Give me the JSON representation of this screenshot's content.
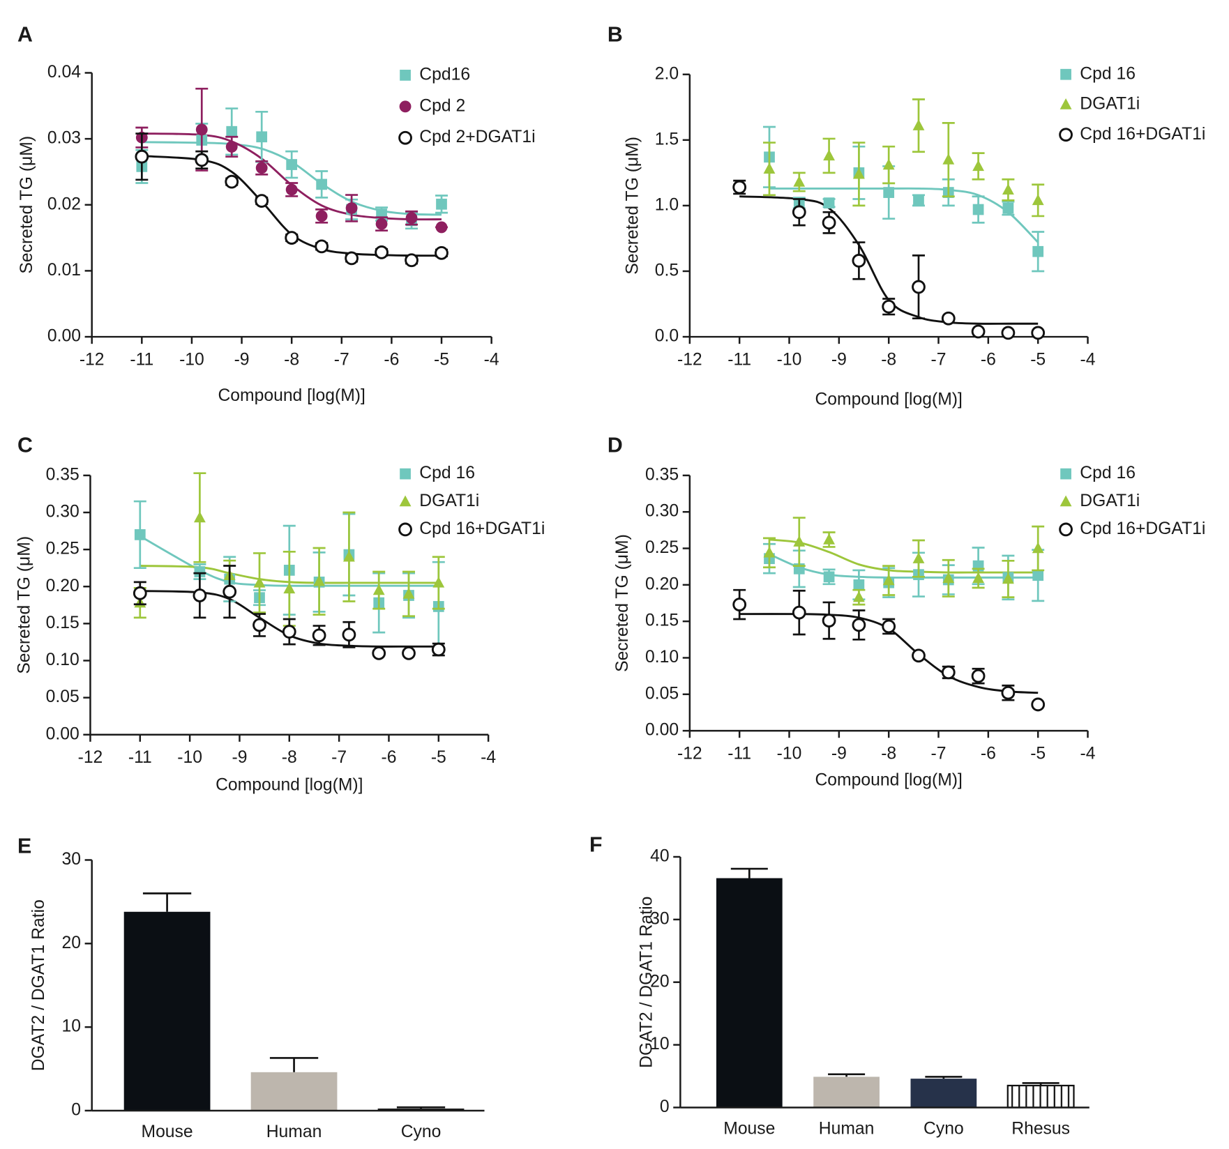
{
  "chart_data": [
    {
      "type": "scatter",
      "label": "A",
      "xlabel": "Compound [log(M)]",
      "ylabel": "Secreted TG (μM)",
      "xlim": [
        -12,
        -4
      ],
      "xticks": [
        -12,
        -11,
        -10,
        -9,
        -8,
        -7,
        -6,
        -5,
        -4
      ],
      "ylim": [
        0,
        0.04
      ],
      "yticks": [
        {
          "value": 0,
          "label": "0.00"
        },
        0.01,
        0.02,
        0.03,
        0.04
      ],
      "series": [
        {
          "name": "Cpd16",
          "color": "#6fc7bd",
          "marker": "square",
          "x": [
            -11,
            -9.8,
            -9.2,
            -8.6,
            -8,
            -7.4,
            -6.8,
            -6.2,
            -5.6,
            -5
          ],
          "values": [
            0.0258,
            0.0298,
            0.0311,
            0.0303,
            0.0261,
            0.0231,
            0.0193,
            0.0186,
            0.0176,
            0.0201
          ],
          "errors": [
            0.0025,
            0.0025,
            0.0035,
            0.0038,
            0.002,
            0.002,
            0.0015,
            0.001,
            0.0012,
            0.0013
          ],
          "fit": [
            0.0295,
            0.0294,
            0.0292,
            0.0285,
            0.0265,
            0.0232,
            0.0205,
            0.0191,
            0.0186,
            0.0185
          ]
        },
        {
          "name": "Cpd 2",
          "color": "#8e1f5f",
          "marker": "circle",
          "x": [
            -11,
            -9.8,
            -9.2,
            -8.6,
            -8,
            -7.4,
            -6.8,
            -6.2,
            -5.6,
            -5
          ],
          "values": [
            0.0302,
            0.0314,
            0.0288,
            0.0256,
            0.0223,
            0.0183,
            0.0195,
            0.0171,
            0.018,
            0.0166
          ],
          "errors": [
            0.0015,
            0.0062,
            0.0015,
            0.001,
            0.001,
            0.001,
            0.002,
            0.001,
            0.001,
            0
          ],
          "fit": [
            0.0308,
            0.0306,
            0.0296,
            0.027,
            0.023,
            0.0199,
            0.0185,
            0.018,
            0.0178,
            0.0178
          ]
        },
        {
          "name": "Cpd 2+DGAT1i",
          "color": "#111111",
          "marker": "open-circle",
          "x": [
            -11,
            -9.8,
            -9.2,
            -8.6,
            -8,
            -7.4,
            -6.8,
            -6.2,
            -5.6,
            -5
          ],
          "values": [
            0.0273,
            0.0268,
            0.0235,
            0.0206,
            0.015,
            0.0137,
            0.0119,
            0.0128,
            0.0116,
            0.0127
          ],
          "errors": [
            0.0035,
            0.0013,
            0.0005,
            0.0005,
            0.0005,
            0.0005,
            0.0005,
            0.0005,
            0.0005,
            0.0005
          ],
          "fit": [
            0.0274,
            0.0268,
            0.025,
            0.0205,
            0.0155,
            0.0133,
            0.0126,
            0.0124,
            0.0123,
            0.0123
          ]
        }
      ]
    },
    {
      "type": "scatter",
      "label": "B",
      "xlabel": "Compound [log(M)]",
      "ylabel": "Secreted TG (μM)",
      "xlim": [
        -12,
        -4
      ],
      "xticks": [
        -12,
        -11,
        -10,
        -9,
        -8,
        -7,
        -6,
        -5,
        -4
      ],
      "ylim": [
        0,
        2
      ],
      "yticks": [
        {
          "value": 0,
          "label": "0.0"
        },
        0.5,
        {
          "value": 1,
          "label": "1.0"
        },
        1.5,
        {
          "value": 2,
          "label": "2.0"
        }
      ],
      "series": [
        {
          "name": "Cpd 16",
          "color": "#6fc7bd",
          "marker": "square",
          "x": [
            -10.4,
            -9.8,
            -9.2,
            -8.6,
            -8,
            -7.4,
            -6.8,
            -6.2,
            -5.6,
            -5
          ],
          "values": [
            1.37,
            1.02,
            1.02,
            1.25,
            1.1,
            1.04,
            1.1,
            0.97,
            0.98,
            0.65
          ],
          "errors": [
            0.23,
            0.04,
            0.03,
            0.2,
            0.2,
            0.04,
            0.1,
            0.1,
            0.05,
            0.15
          ],
          "fit": [
            1.13,
            1.13,
            1.13,
            1.13,
            1.13,
            1.13,
            1.12,
            1.08,
            0.95,
            0.72
          ]
        },
        {
          "name": "DGAT1i",
          "color": "#9dc63b",
          "marker": "triangle",
          "x": [
            -10.4,
            -9.8,
            -9.2,
            -8.6,
            -8,
            -7.4,
            -6.8,
            -6.2,
            -5.6,
            -5
          ],
          "values": [
            1.28,
            1.18,
            1.38,
            1.24,
            1.31,
            1.61,
            1.35,
            1.3,
            1.12,
            1.04
          ],
          "errors": [
            0.2,
            0.07,
            0.13,
            0.24,
            0.14,
            0.2,
            0.28,
            0.1,
            0.08,
            0.12
          ]
        },
        {
          "name": "Cpd 16+DGAT1i",
          "color": "#111111",
          "marker": "open-circle",
          "x": [
            -11,
            -9.8,
            -9.2,
            -8.6,
            -8,
            -7.4,
            -6.8,
            -6.2,
            -5.6,
            -5
          ],
          "values": [
            1.14,
            0.95,
            0.87,
            0.58,
            0.23,
            0.38,
            0.14,
            0.04,
            0.03,
            0.03
          ],
          "errors": [
            0.05,
            0.1,
            0.08,
            0.14,
            0.06,
            0.24,
            0.01,
            0.01,
            0.01,
            0.01
          ],
          "fit": [
            1.07,
            1.05,
            0.98,
            0.7,
            0.28,
            0.15,
            0.11,
            0.1,
            0.1,
            0.1
          ]
        }
      ]
    },
    {
      "type": "scatter",
      "label": "C",
      "xlabel": "Compound [log(M)]",
      "ylabel": "Secreted TG (μM)",
      "xlim": [
        -12,
        -4
      ],
      "xticks": [
        -12,
        -11,
        -10,
        -9,
        -8,
        -7,
        -6,
        -5,
        -4
      ],
      "ylim": [
        0,
        0.35
      ],
      "yticks": [
        {
          "value": 0,
          "label": "0.00"
        },
        0.05,
        {
          "value": 0.1,
          "label": "0.10"
        },
        0.15,
        {
          "value": 0.2,
          "label": "0.20"
        },
        0.25,
        {
          "value": 0.3,
          "label": "0.30"
        },
        0.35
      ],
      "series": [
        {
          "name": "Cpd 16",
          "color": "#6fc7bd",
          "marker": "square",
          "x": [
            -11,
            -9.8,
            -9.2,
            -8.6,
            -8,
            -7.4,
            -6.8,
            -6.2,
            -5.6,
            -5
          ],
          "values": [
            0.27,
            0.22,
            0.21,
            0.185,
            0.222,
            0.206,
            0.243,
            0.178,
            0.188,
            0.173
          ],
          "errors": [
            0.045,
            0.01,
            0.03,
            0.01,
            0.06,
            0.04,
            0.055,
            0.04,
            0.03,
            0.06
          ],
          "fit": [
            0.268,
            0.222,
            0.206,
            0.202,
            0.201,
            0.201,
            0.201,
            0.201,
            0.201,
            0.201
          ]
        },
        {
          "name": "DGAT1i",
          "color": "#9dc63b",
          "marker": "triangle",
          "x": [
            -11,
            -9.8,
            -9.2,
            -8.6,
            -8,
            -7.4,
            -6.8,
            -6.2,
            -5.6,
            -5
          ],
          "values": [
            0.178,
            0.293,
            0.215,
            0.205,
            0.197,
            0.207,
            0.24,
            0.195,
            0.19,
            0.205
          ],
          "errors": [
            0.02,
            0.06,
            0.02,
            0.04,
            0.05,
            0.045,
            0.06,
            0.025,
            0.03,
            0.035
          ],
          "fit": [
            0.228,
            0.226,
            0.218,
            0.21,
            0.206,
            0.205,
            0.205,
            0.205,
            0.205,
            0.205
          ]
        },
        {
          "name": "Cpd 16+DGAT1i",
          "color": "#111111",
          "marker": "open-circle",
          "x": [
            -11,
            -9.8,
            -9.2,
            -8.6,
            -8,
            -7.4,
            -6.8,
            -6.2,
            -5.6,
            -5
          ],
          "values": [
            0.191,
            0.188,
            0.193,
            0.148,
            0.139,
            0.134,
            0.135,
            0.11,
            0.11,
            0.115
          ],
          "errors": [
            0.015,
            0.03,
            0.035,
            0.015,
            0.017,
            0.013,
            0.017,
            0.003,
            0.003,
            0.008
          ],
          "fit": [
            0.194,
            0.192,
            0.183,
            0.158,
            0.134,
            0.123,
            0.12,
            0.119,
            0.119,
            0.119
          ]
        }
      ]
    },
    {
      "type": "scatter",
      "label": "D",
      "xlabel": "Compound [log(M)]",
      "ylabel": "Secreted TG (μM)",
      "xlim": [
        -12,
        -4
      ],
      "xticks": [
        -12,
        -11,
        -10,
        -9,
        -8,
        -7,
        -6,
        -5,
        -4
      ],
      "ylim": [
        0,
        0.35
      ],
      "yticks": [
        {
          "value": 0,
          "label": "0.00"
        },
        0.05,
        {
          "value": 0.1,
          "label": "0.10"
        },
        0.15,
        {
          "value": 0.2,
          "label": "0.20"
        },
        0.25,
        {
          "value": 0.3,
          "label": "0.30"
        },
        0.35
      ],
      "series": [
        {
          "name": "Cpd 16",
          "color": "#6fc7bd",
          "marker": "square",
          "x": [
            -10.4,
            -9.8,
            -9.2,
            -8.6,
            -8,
            -7.4,
            -6.8,
            -6.2,
            -5.6,
            -5
          ],
          "values": [
            0.236,
            0.222,
            0.211,
            0.2,
            0.203,
            0.214,
            0.207,
            0.226,
            0.21,
            0.213
          ],
          "errors": [
            0.02,
            0.025,
            0.01,
            0.02,
            0.02,
            0.03,
            0.02,
            0.025,
            0.03,
            0.035
          ],
          "fit": [
            0.242,
            0.224,
            0.214,
            0.211,
            0.21,
            0.21,
            0.21,
            0.21,
            0.21,
            0.21
          ]
        },
        {
          "name": "DGAT1i",
          "color": "#9dc63b",
          "marker": "triangle",
          "x": [
            -10.4,
            -9.8,
            -9.2,
            -8.6,
            -8,
            -7.4,
            -6.8,
            -6.2,
            -5.6,
            -5
          ],
          "values": [
            0.244,
            0.259,
            0.262,
            0.183,
            0.206,
            0.236,
            0.209,
            0.209,
            0.208,
            0.25
          ],
          "errors": [
            0.02,
            0.033,
            0.01,
            0.01,
            0.02,
            0.025,
            0.025,
            0.013,
            0.025,
            0.03
          ],
          "fit": [
            0.262,
            0.258,
            0.245,
            0.228,
            0.22,
            0.218,
            0.217,
            0.217,
            0.217,
            0.217
          ]
        },
        {
          "name": "Cpd 16+DGAT1i",
          "color": "#111111",
          "marker": "open-circle",
          "x": [
            -11,
            -9.8,
            -9.2,
            -8.6,
            -8,
            -7.4,
            -6.8,
            -6.2,
            -5.6,
            -5
          ],
          "values": [
            0.173,
            0.162,
            0.151,
            0.145,
            0.143,
            0.103,
            0.08,
            0.075,
            0.052,
            0.036
          ],
          "errors": [
            0.02,
            0.03,
            0.025,
            0.02,
            0.01,
            0.002,
            0.008,
            0.01,
            0.01,
            0.002
          ],
          "fit": [
            0.16,
            0.16,
            0.159,
            0.155,
            0.14,
            0.105,
            0.075,
            0.06,
            0.054,
            0.052
          ]
        }
      ]
    },
    {
      "type": "bar",
      "label": "E",
      "ylabel": "DGAT2 / DGAT1 Ratio",
      "categories": [
        "Mouse",
        "Human",
        "Cyno"
      ],
      "values": [
        23.8,
        4.6,
        0.25
      ],
      "errors": [
        2.2,
        1.7,
        0.15
      ],
      "colors": [
        "#0b0f14",
        "#bdb6ad",
        "#1a1a1a"
      ],
      "hatch": [
        false,
        false,
        false
      ],
      "ylim": [
        0,
        30
      ],
      "yticks": [
        0,
        10,
        20,
        30
      ]
    },
    {
      "type": "bar",
      "label": "F",
      "ylabel": "DGAT2 / DGAT1 Ratio",
      "categories": [
        "Mouse",
        "Human",
        "Cyno",
        "Rhesus"
      ],
      "values": [
        36.6,
        4.9,
        4.6,
        3.5
      ],
      "errors": [
        1.5,
        0.4,
        0.3,
        0.4
      ],
      "colors": [
        "#0b0f14",
        "#bdb6ad",
        "#26324a",
        "#ffffff"
      ],
      "hatch": [
        false,
        false,
        false,
        true
      ],
      "ylim": [
        0,
        40
      ],
      "yticks": [
        0,
        10,
        20,
        30,
        40
      ]
    }
  ]
}
